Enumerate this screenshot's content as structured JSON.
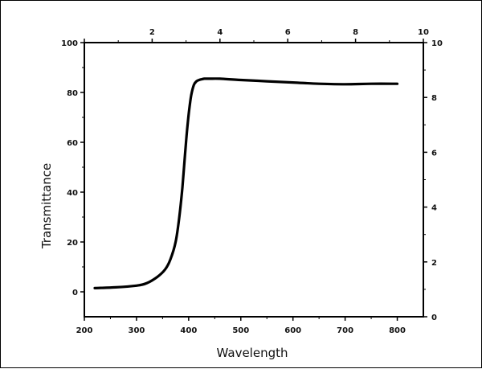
{
  "chart_data": {
    "type": "line",
    "title": "",
    "xlabel": "Wavelength",
    "ylabel": "Transmittance",
    "xlim": [
      200,
      850
    ],
    "ylim": [
      -10,
      100
    ],
    "x_ticks": [
      200,
      300,
      400,
      500,
      600,
      700,
      800
    ],
    "y_ticks": [
      0,
      20,
      40,
      60,
      80,
      100
    ],
    "top_axis": {
      "range": [
        0,
        10
      ],
      "ticks": [
        0,
        2,
        4,
        6,
        8,
        10
      ],
      "labels": [
        "2",
        "4",
        "6",
        "8",
        "10"
      ]
    },
    "right_axis": {
      "range": [
        0,
        10
      ],
      "ticks": [
        0,
        2,
        4,
        6,
        8,
        10
      ],
      "labels": [
        "0",
        "2",
        "4",
        "6",
        "8",
        "10"
      ]
    },
    "grid": false,
    "legend": "none",
    "line_color": "#000000",
    "series": [
      {
        "x": [
          220,
          260,
          300,
          320,
          340,
          355,
          365,
          375,
          382,
          388,
          393,
          397,
          401,
          405,
          410,
          415,
          420,
          425,
          430,
          440,
          460,
          500,
          550,
          600,
          650,
          700,
          750,
          800
        ],
        "y": [
          1.5,
          1.8,
          2.5,
          3.5,
          6,
          9,
          13,
          20,
          30,
          42,
          55,
          65,
          73,
          79,
          83,
          84.5,
          85,
          85.3,
          85.5,
          85.5,
          85.5,
          85,
          84.5,
          84,
          83.5,
          83.3,
          83.5,
          83.5
        ]
      }
    ]
  }
}
